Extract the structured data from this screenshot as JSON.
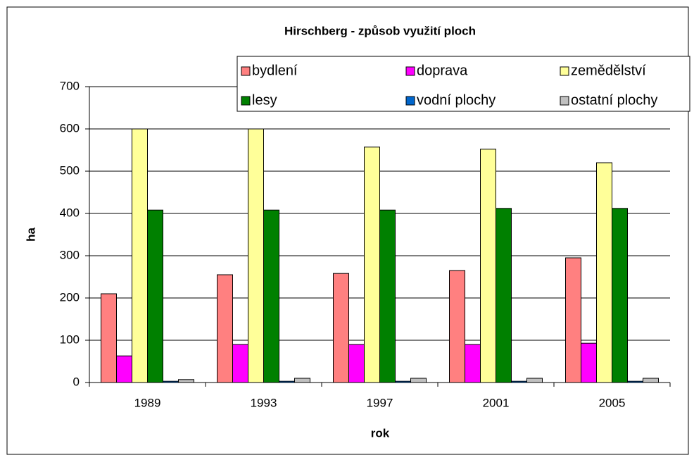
{
  "chart_data": {
    "type": "bar",
    "title": "Hirschberg - způsob využití ploch",
    "x_label": "rok",
    "y_label": "ha",
    "categories": [
      "1989",
      "1993",
      "1997",
      "2001",
      "2005"
    ],
    "series": [
      {
        "name": "bydlení",
        "color": "#ff8080",
        "values": [
          210,
          255,
          258,
          265,
          295
        ]
      },
      {
        "name": "doprava",
        "color": "#ff00ff",
        "values": [
          63,
          90,
          90,
          90,
          93
        ]
      },
      {
        "name": "zemědělství",
        "color": "#ffff99",
        "values": [
          600,
          600,
          557,
          552,
          520
        ]
      },
      {
        "name": "lesy",
        "color": "#008000",
        "values": [
          408,
          408,
          408,
          412,
          412
        ]
      },
      {
        "name": "vodní plochy",
        "color": "#0066cc",
        "values": [
          3,
          3,
          3,
          3,
          3
        ]
      },
      {
        "name": "ostatní plochy",
        "color": "#c0c0c0",
        "values": [
          7,
          10,
          10,
          10,
          10
        ]
      }
    ],
    "ylim": [
      0,
      700
    ],
    "yticks": [
      0,
      100,
      200,
      300,
      400,
      500,
      600,
      700
    ],
    "grid": true,
    "legend": "top-right"
  }
}
